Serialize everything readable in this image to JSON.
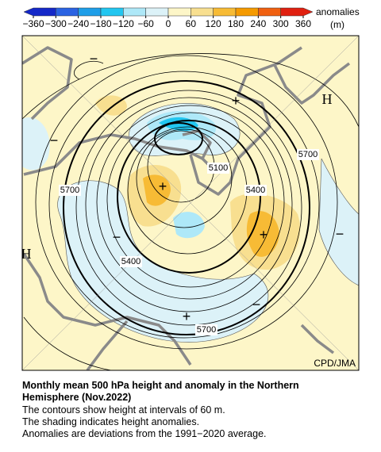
{
  "colorbar": {
    "ticks": [
      {
        "value": -360,
        "label": "−360"
      },
      {
        "value": -300,
        "label": "−300"
      },
      {
        "value": -240,
        "label": "−240"
      },
      {
        "value": -180,
        "label": "−180"
      },
      {
        "value": -120,
        "label": "−120"
      },
      {
        "value": -60,
        "label": "−60"
      },
      0,
      60,
      120,
      180,
      240,
      300,
      360
    ],
    "colors": [
      "#1428c8",
      "#2a62e2",
      "#1e9ee8",
      "#22c6f0",
      "#aee8f8",
      "#dcf2f8",
      "#fdf6c8",
      "#f8df90",
      "#f7bb35",
      "#f59a00",
      "#f06010",
      "#e02010"
    ],
    "label": "anomalies",
    "unit": "(m)"
  },
  "map": {
    "contour_labels": [
      5700,
      5100,
      5400,
      5400,
      5700,
      5700
    ],
    "highs": [
      "H",
      "H"
    ],
    "positive": [
      "+",
      "+",
      "+",
      "+"
    ],
    "negative": [
      "−",
      "−",
      "−",
      "−",
      "−"
    ],
    "credit": "CPD/JMA"
  },
  "caption": {
    "title_line1": "Monthly mean 500 hPa height and anomaly in the Northern",
    "title_line2": "Hemisphere (Nov.2022)",
    "lines": [
      "The contours show height at intervals of 60 m.",
      "The shading indicates height anomalies.",
      "Anomalies are deviations from the 1991−2020 average."
    ]
  }
}
